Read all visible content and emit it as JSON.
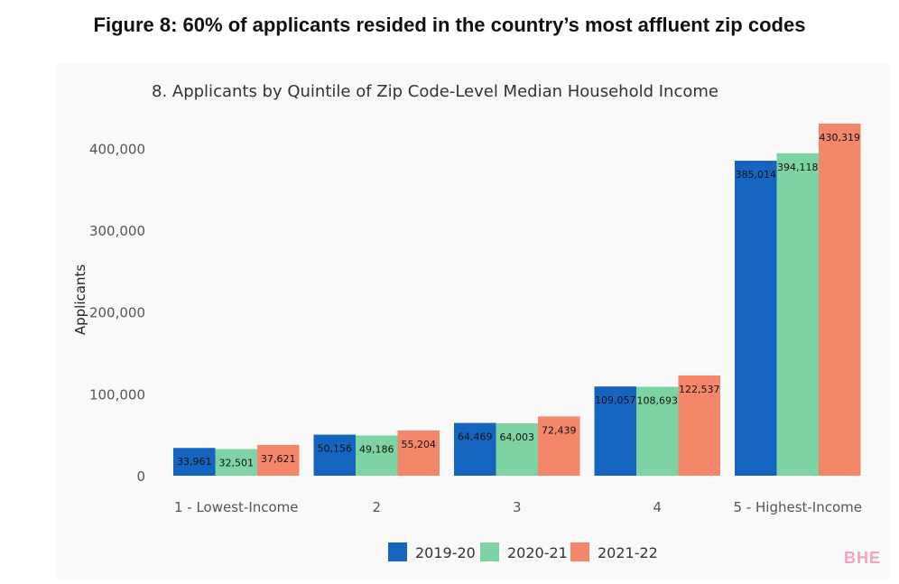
{
  "figure_title": "Figure 8: 60% of applicants resided in the country’s most affluent zip codes",
  "watermark": "BHE",
  "chart_data": {
    "type": "bar",
    "title": "8. Applicants by Quintile of Zip Code-Level Median Household Income",
    "xlabel": "",
    "ylabel": "Applicants",
    "categories": [
      "1 - Lowest-Income",
      "2",
      "3",
      "4",
      "5 - Highest-Income"
    ],
    "series": [
      {
        "name": "2019-20",
        "values": [
          33961,
          50156,
          64469,
          109057,
          385014
        ],
        "labels": [
          "33,961",
          "50,156",
          "64,469",
          "109,057",
          "385,014"
        ],
        "color": "#1565c0"
      },
      {
        "name": "2020-21",
        "values": [
          32501,
          49186,
          64003,
          108693,
          394118
        ],
        "labels": [
          "32,501",
          "49,186",
          "64,003",
          "108,693",
          "394,118"
        ],
        "color": "#7dd3a3"
      },
      {
        "name": "2021-22",
        "values": [
          37621,
          55204,
          72439,
          122537,
          430319
        ],
        "labels": [
          "37,621",
          "55,204",
          "72,439",
          "122,537",
          "430,319"
        ],
        "color": "#f4876a"
      }
    ],
    "yticks": [
      0,
      100000,
      200000,
      300000,
      400000
    ],
    "ytick_labels": [
      "0",
      "100,000",
      "200,000",
      "300,000",
      "400,000"
    ],
    "ylim": [
      0,
      430319
    ],
    "grid": false,
    "legend_position": "bottom"
  }
}
